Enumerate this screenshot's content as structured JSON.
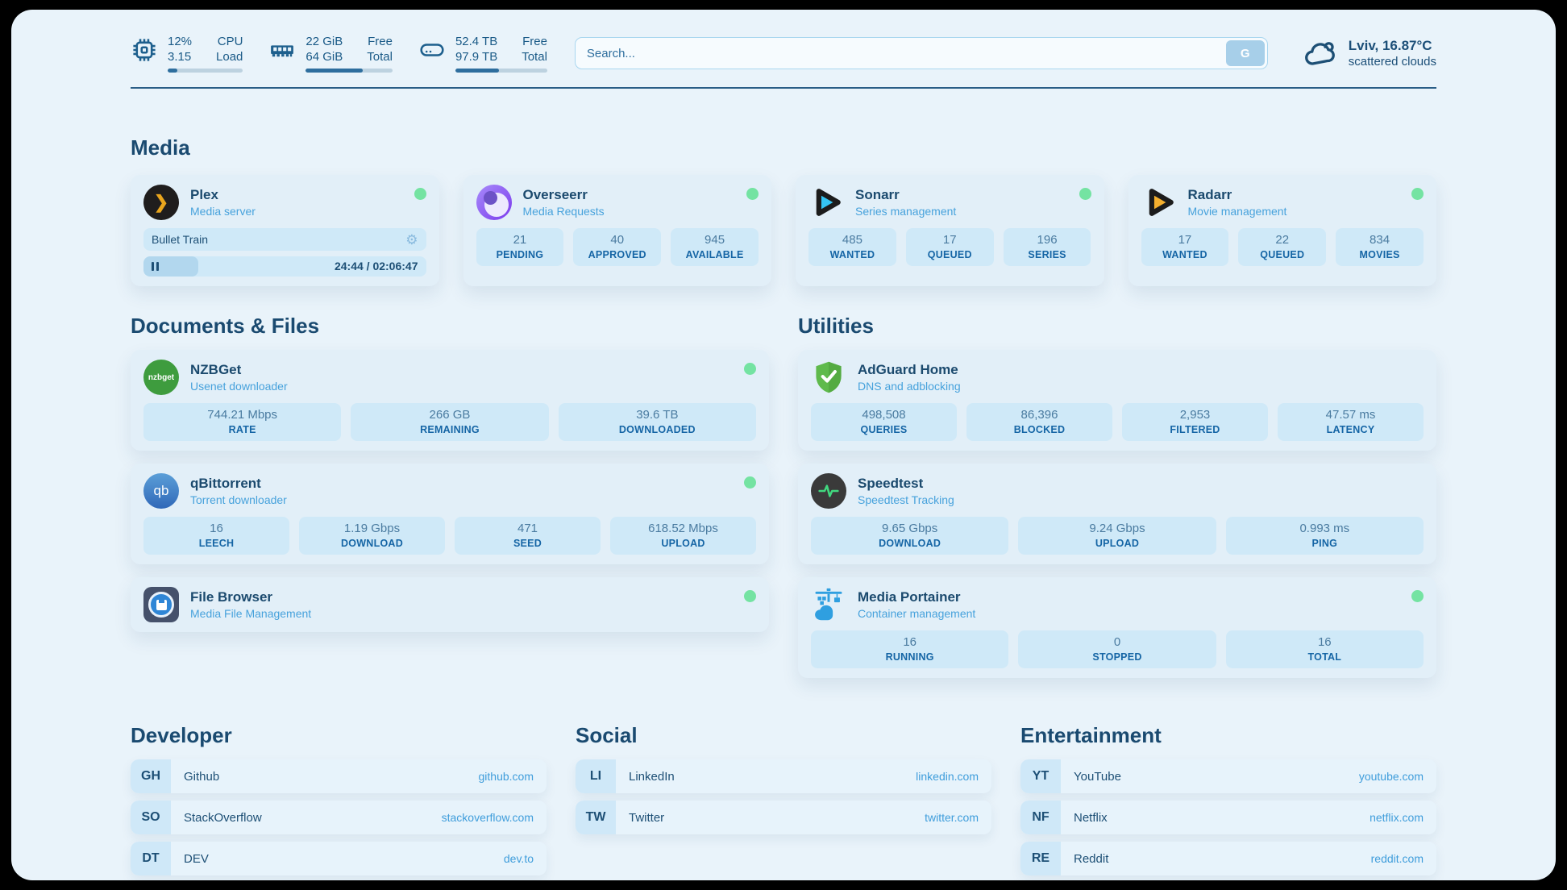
{
  "colors": {
    "status_online": "#74e3a2",
    "link_url": "#3f9ddb",
    "navy_text": "#1d4f75",
    "subtitle_blue": "#47a2dc",
    "stat_box_bg": "#cfe9f8"
  },
  "icons": {
    "gear": "⚙",
    "nzbget_logo_text": "nzbget",
    "qbittorrent_logo_text": "qb"
  },
  "topbar": {
    "system_stats": [
      {
        "icon": "cpu-icon",
        "values": [
          "12%",
          "3.15"
        ],
        "labels": [
          "CPU",
          "Load"
        ],
        "progress_pct": 13
      },
      {
        "icon": "ram-icon",
        "values": [
          "22 GiB",
          "64 GiB"
        ],
        "labels": [
          "Free",
          "Total"
        ],
        "progress_pct": 66
      },
      {
        "icon": "disk-icon",
        "values": [
          "52.4 TB",
          "97.9 TB"
        ],
        "labels": [
          "Free",
          "Total"
        ],
        "progress_pct": 47
      }
    ],
    "search": {
      "placeholder": "Search...",
      "button_label": "G"
    },
    "weather": {
      "icon": "cloud-icon",
      "title": "Lviv, 16.87°C",
      "subtitle": "scattered clouds"
    }
  },
  "sections": {
    "media": {
      "title": "Media",
      "cards": [
        {
          "name": "Plex",
          "subtitle": "Media server",
          "icon": "plex-icon",
          "online": true,
          "now_playing": {
            "title": "Bullet Train",
            "progress_pct": 19.5,
            "time": "24:44 / 02:06:47"
          }
        },
        {
          "name": "Overseerr",
          "subtitle": "Media Requests",
          "icon": "overseerr-icon",
          "online": true,
          "stats": [
            {
              "value": "21",
              "label": "PENDING"
            },
            {
              "value": "40",
              "label": "APPROVED"
            },
            {
              "value": "945",
              "label": "AVAILABLE"
            }
          ]
        },
        {
          "name": "Sonarr",
          "subtitle": "Series management",
          "icon": "sonarr-icon",
          "online": true,
          "stats": [
            {
              "value": "485",
              "label": "WANTED"
            },
            {
              "value": "17",
              "label": "QUEUED"
            },
            {
              "value": "196",
              "label": "SERIES"
            }
          ]
        },
        {
          "name": "Radarr",
          "subtitle": "Movie management",
          "icon": "radarr-icon",
          "online": true,
          "stats": [
            {
              "value": "17",
              "label": "WANTED"
            },
            {
              "value": "22",
              "label": "QUEUED"
            },
            {
              "value": "834",
              "label": "MOVIES"
            }
          ]
        }
      ]
    },
    "documents": {
      "title": "Documents & Files",
      "cards": [
        {
          "name": "NZBGet",
          "subtitle": "Usenet downloader",
          "icon": "nzbget-icon",
          "online": true,
          "stats": [
            {
              "value": "744.21 Mbps",
              "label": "RATE"
            },
            {
              "value": "266 GB",
              "label": "REMAINING"
            },
            {
              "value": "39.6 TB",
              "label": "DOWNLOADED"
            }
          ]
        },
        {
          "name": "qBittorrent",
          "subtitle": "Torrent downloader",
          "icon": "qbittorrent-icon",
          "online": true,
          "stats": [
            {
              "value": "16",
              "label": "LEECH"
            },
            {
              "value": "1.19 Gbps",
              "label": "DOWNLOAD"
            },
            {
              "value": "471",
              "label": "SEED"
            },
            {
              "value": "618.52 Mbps",
              "label": "UPLOAD"
            }
          ]
        },
        {
          "name": "File Browser",
          "subtitle": "Media File Management",
          "icon": "filebrowser-icon",
          "online": true
        }
      ]
    },
    "utilities": {
      "title": "Utilities",
      "cards": [
        {
          "name": "AdGuard Home",
          "subtitle": "DNS and adblocking",
          "icon": "adguard-icon",
          "online": false,
          "stats": [
            {
              "value": "498,508",
              "label": "QUERIES"
            },
            {
              "value": "86,396",
              "label": "BLOCKED"
            },
            {
              "value": "2,953",
              "label": "FILTERED"
            },
            {
              "value": "47.57 ms",
              "label": "LATENCY"
            }
          ]
        },
        {
          "name": "Speedtest",
          "subtitle": "Speedtest Tracking",
          "icon": "speedtest-icon",
          "online": false,
          "stats": [
            {
              "value": "9.65 Gbps",
              "label": "DOWNLOAD"
            },
            {
              "value": "9.24 Gbps",
              "label": "UPLOAD"
            },
            {
              "value": "0.993 ms",
              "label": "PING"
            }
          ]
        },
        {
          "name": "Media Portainer",
          "subtitle": "Container management",
          "icon": "portainer-icon",
          "online": true,
          "stats": [
            {
              "value": "16",
              "label": "RUNNING"
            },
            {
              "value": "0",
              "label": "STOPPED"
            },
            {
              "value": "16",
              "label": "TOTAL"
            }
          ]
        }
      ]
    },
    "links": [
      {
        "title": "Developer",
        "items": [
          {
            "abbr": "GH",
            "name": "Github",
            "url": "github.com"
          },
          {
            "abbr": "SO",
            "name": "StackOverflow",
            "url": "stackoverflow.com"
          },
          {
            "abbr": "DT",
            "name": "DEV",
            "url": "dev.to"
          }
        ]
      },
      {
        "title": "Social",
        "items": [
          {
            "abbr": "LI",
            "name": "LinkedIn",
            "url": "linkedin.com"
          },
          {
            "abbr": "TW",
            "name": "Twitter",
            "url": "twitter.com"
          }
        ]
      },
      {
        "title": "Entertainment",
        "items": [
          {
            "abbr": "YT",
            "name": "YouTube",
            "url": "youtube.com"
          },
          {
            "abbr": "NF",
            "name": "Netflix",
            "url": "netflix.com"
          },
          {
            "abbr": "RE",
            "name": "Reddit",
            "url": "reddit.com"
          }
        ]
      }
    ]
  }
}
